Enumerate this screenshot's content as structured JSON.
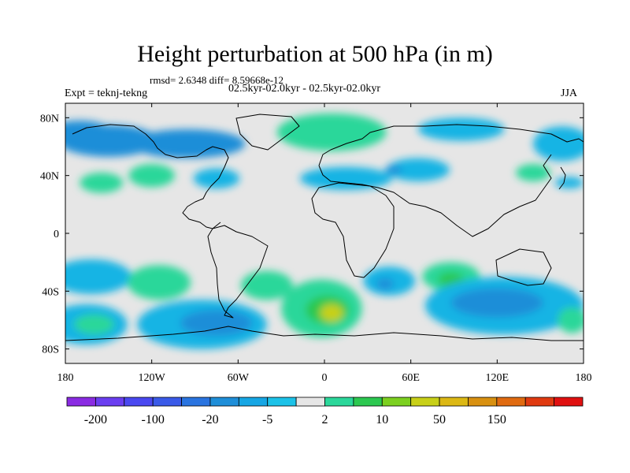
{
  "header": {
    "title": "Height perturbation at 500 hPa (in m)",
    "stats": "rmsd= 2.6348 diff= 8.59668e-12",
    "left_label": "Expt = teknj-tekng",
    "center_label": "02.5kyr-02.0kyr - 02.5kyr-02.0kyr",
    "right_label": "JJA"
  },
  "chart_data": {
    "type": "filled-contour-map",
    "title": "Height perturbation at 500 hPa (in m)",
    "projection": "cylindrical-equidistant",
    "lon_range": [
      -180,
      180
    ],
    "lat_range": [
      -90,
      90
    ],
    "x_ticks": [
      {
        "value": -180,
        "label": "180"
      },
      {
        "value": -120,
        "label": "120W"
      },
      {
        "value": -60,
        "label": "60W"
      },
      {
        "value": 0,
        "label": "0"
      },
      {
        "value": 60,
        "label": "60E"
      },
      {
        "value": 120,
        "label": "120E"
      },
      {
        "value": 180,
        "label": "180"
      }
    ],
    "y_ticks": [
      {
        "value": 80,
        "label": "80N"
      },
      {
        "value": 40,
        "label": "40N"
      },
      {
        "value": 0,
        "label": "0"
      },
      {
        "value": -40,
        "label": "40S"
      },
      {
        "value": -80,
        "label": "80S"
      }
    ],
    "colorbar": {
      "colors": [
        "#8a2be2",
        "#6a3ef0",
        "#4a48f0",
        "#3a5ae8",
        "#2a74e0",
        "#1e8ed8",
        "#16a6e4",
        "#1cc2e8",
        "#e6e6e6",
        "#2bd79a",
        "#2cc850",
        "#7cd020",
        "#c8d018",
        "#dcb814",
        "#d89010",
        "#e06a10",
        "#e03a10",
        "#e01010"
      ],
      "tick_labels": [
        "-200",
        "-100",
        "-20",
        "-5",
        "2",
        "10",
        "50",
        "150"
      ]
    },
    "regions": [
      {
        "lon": -150,
        "lat": 64,
        "rx": 35,
        "ry": 11,
        "level": -3
      },
      {
        "lon": -95,
        "lat": 62,
        "rx": 40,
        "ry": 10,
        "level": -3
      },
      {
        "lon": -170,
        "lat": 72,
        "rx": 20,
        "ry": 6,
        "level": -3
      },
      {
        "lon": -120,
        "lat": 40,
        "rx": 16,
        "ry": 8,
        "level": 1
      },
      {
        "lon": -155,
        "lat": 35,
        "rx": 15,
        "ry": 7,
        "level": 1
      },
      {
        "lon": -75,
        "lat": 38,
        "rx": 16,
        "ry": 7,
        "level": -2
      },
      {
        "lon": 5,
        "lat": 70,
        "rx": 38,
        "ry": 13,
        "level": 1
      },
      {
        "lon": 15,
        "lat": 38,
        "rx": 32,
        "ry": 8,
        "level": -2
      },
      {
        "lon": 65,
        "lat": 44,
        "rx": 22,
        "ry": 8,
        "level": -2
      },
      {
        "lon": 48,
        "lat": 44,
        "rx": 6,
        "ry": 3,
        "level": -3
      },
      {
        "lon": 95,
        "lat": 72,
        "rx": 30,
        "ry": 8,
        "level": -2
      },
      {
        "lon": 165,
        "lat": 62,
        "rx": 20,
        "ry": 12,
        "level": -2
      },
      {
        "lon": 145,
        "lat": 42,
        "rx": 12,
        "ry": 6,
        "level": 1
      },
      {
        "lon": 170,
        "lat": 35,
        "rx": 10,
        "ry": 4,
        "level": -2
      },
      {
        "lon": -162,
        "lat": -30,
        "rx": 28,
        "ry": 12,
        "level": -2
      },
      {
        "lon": -115,
        "lat": -34,
        "rx": 22,
        "ry": 12,
        "level": 1
      },
      {
        "lon": -40,
        "lat": -36,
        "rx": 18,
        "ry": 10,
        "level": 1
      },
      {
        "lon": -165,
        "lat": -63,
        "rx": 28,
        "ry": 14,
        "level": -2
      },
      {
        "lon": -160,
        "lat": -63,
        "rx": 14,
        "ry": 7,
        "level": 1
      },
      {
        "lon": -85,
        "lat": -63,
        "rx": 45,
        "ry": 17,
        "level": -2
      },
      {
        "lon": -75,
        "lat": -62,
        "rx": 25,
        "ry": 9,
        "level": -3
      },
      {
        "lon": -2,
        "lat": -52,
        "rx": 28,
        "ry": 20,
        "level": 1
      },
      {
        "lon": 2,
        "lat": -53,
        "rx": 15,
        "ry": 10,
        "level": 2
      },
      {
        "lon": 5,
        "lat": -55,
        "rx": 8,
        "ry": 6,
        "level": 3
      },
      {
        "lon": 45,
        "lat": -33,
        "rx": 18,
        "ry": 10,
        "level": -2
      },
      {
        "lon": 42,
        "lat": -35,
        "rx": 6,
        "ry": 4,
        "level": -3
      },
      {
        "lon": 88,
        "lat": -30,
        "rx": 20,
        "ry": 10,
        "level": 1
      },
      {
        "lon": 88,
        "lat": -32,
        "rx": 9,
        "ry": 5,
        "level": 2
      },
      {
        "lon": 125,
        "lat": -50,
        "rx": 55,
        "ry": 20,
        "level": -2
      },
      {
        "lon": 120,
        "lat": -48,
        "rx": 32,
        "ry": 10,
        "level": -3
      },
      {
        "lon": 172,
        "lat": -60,
        "rx": 10,
        "ry": 9,
        "level": 1
      }
    ]
  }
}
